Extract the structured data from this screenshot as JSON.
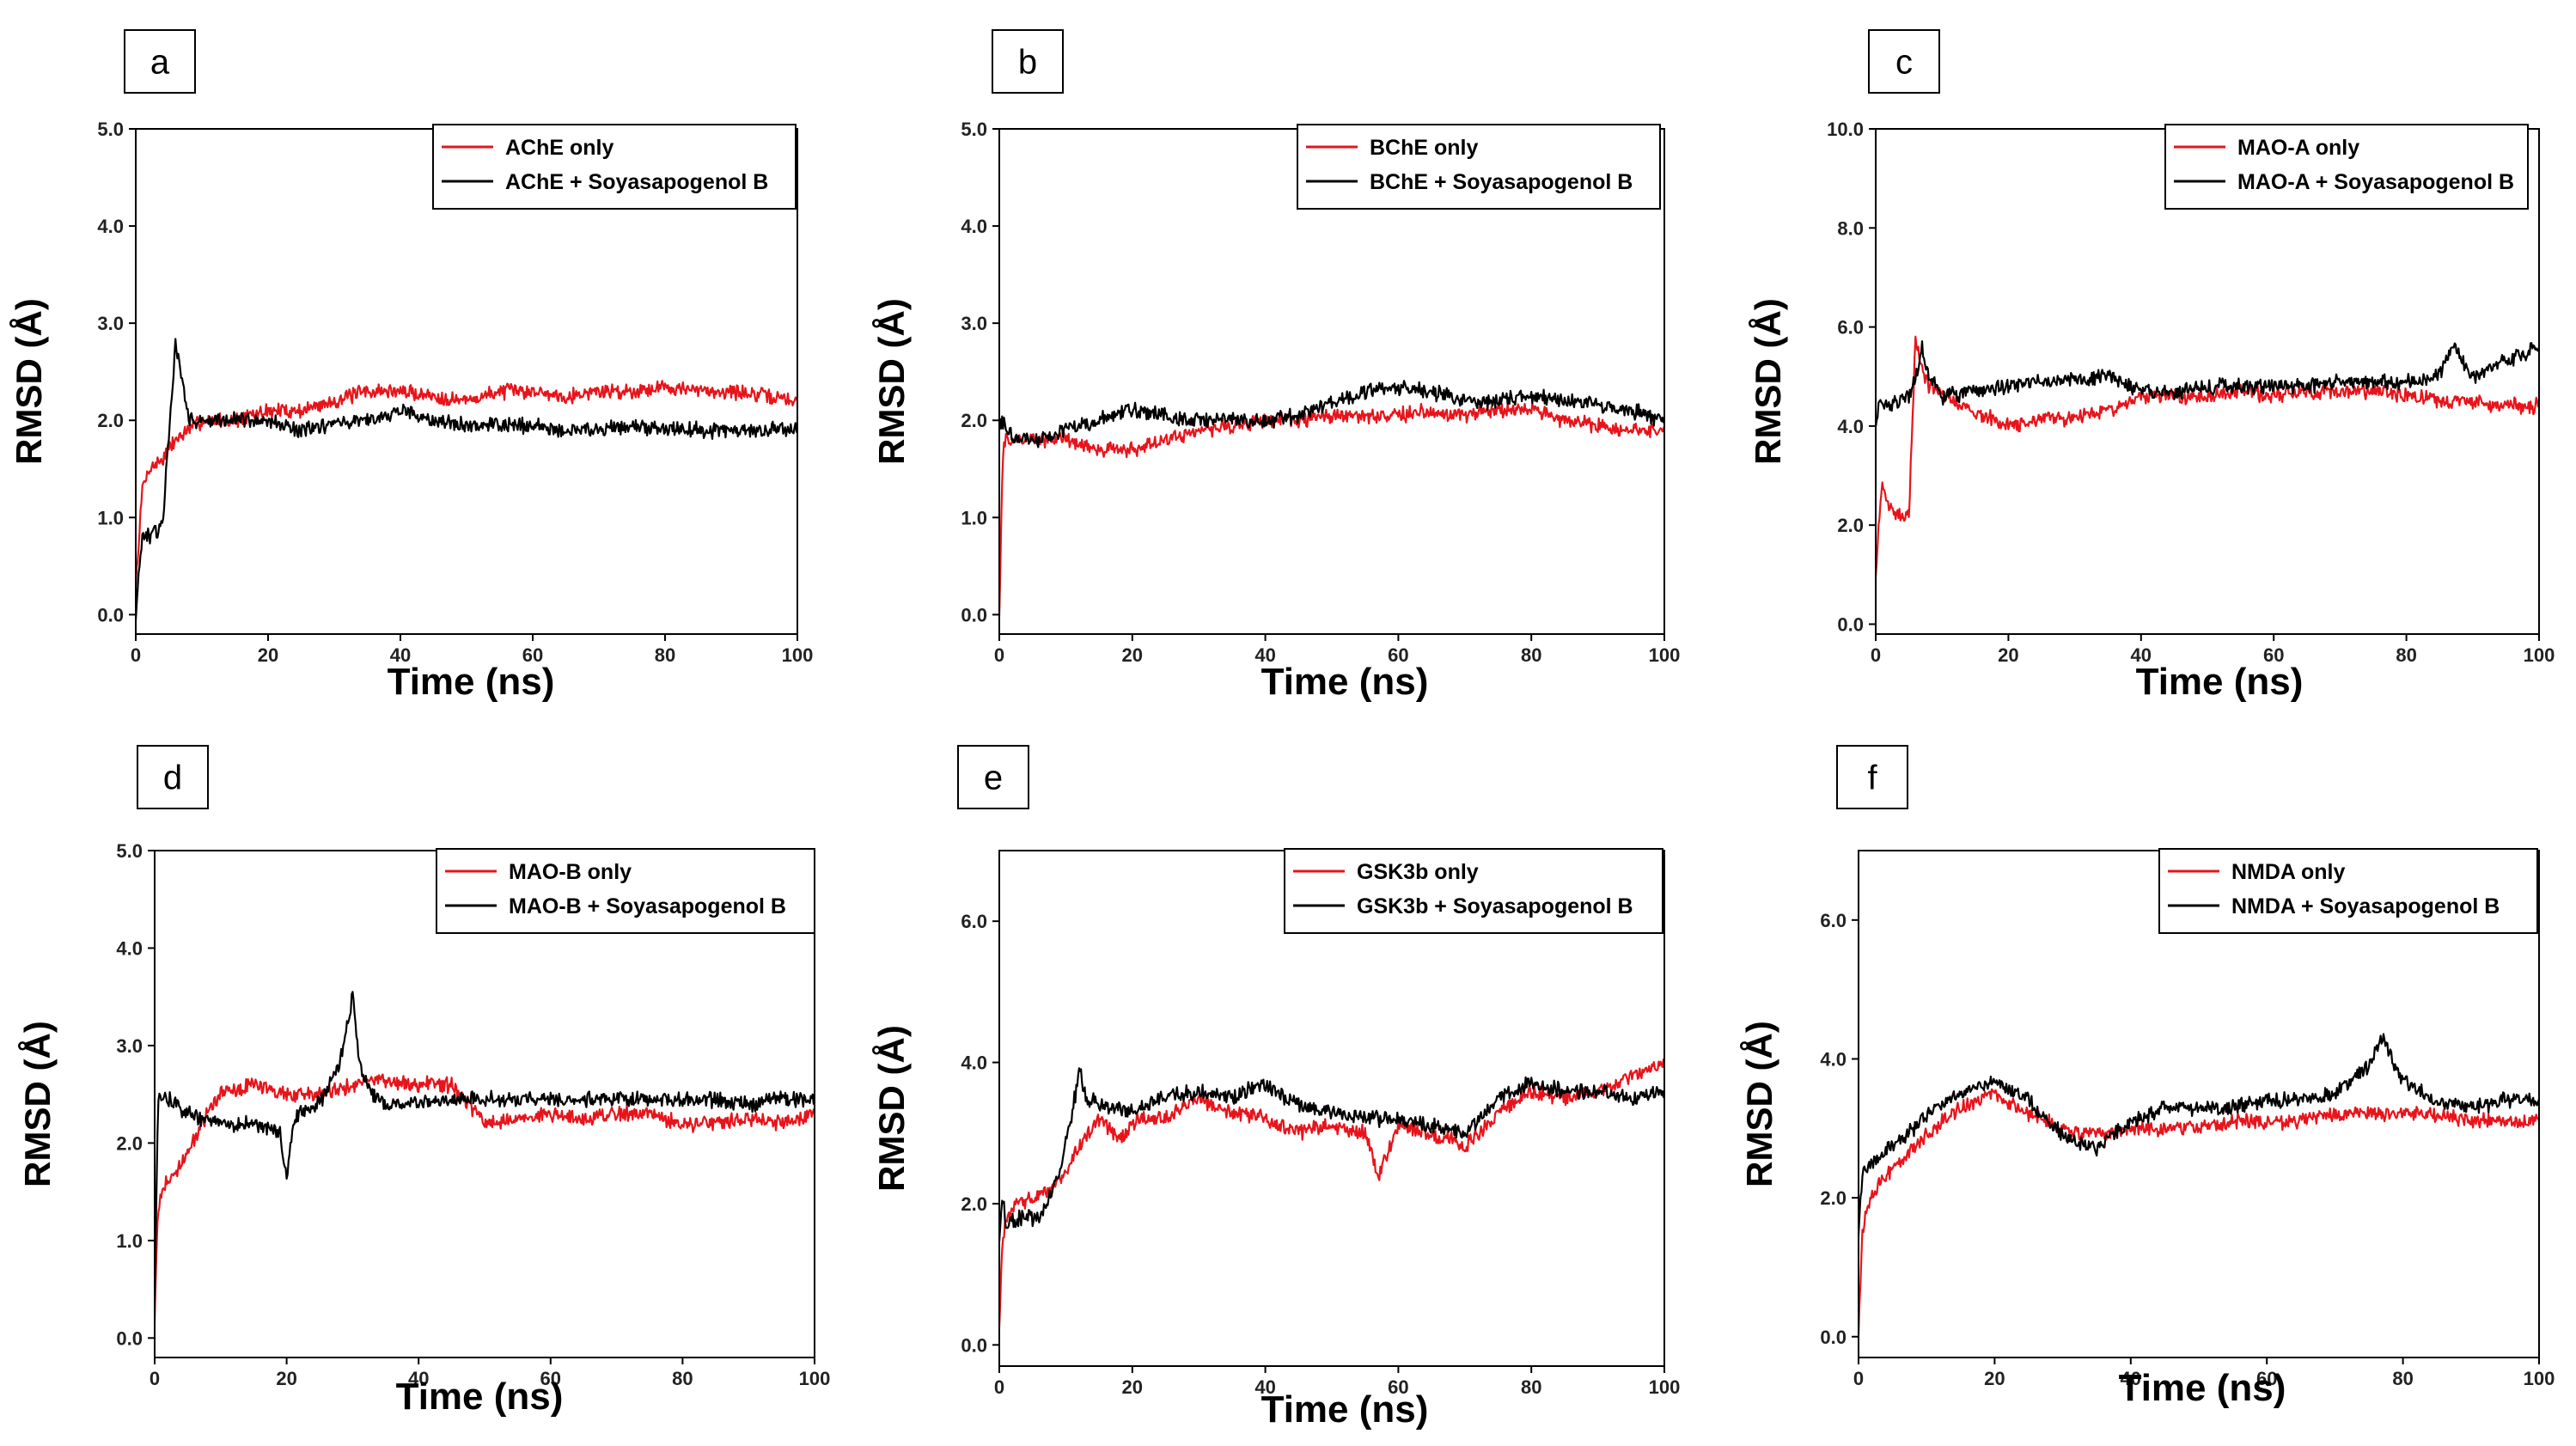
{
  "chart_data": [
    {
      "id": "a",
      "panel_label": "a",
      "type": "line",
      "xlabel": "Time (ns)",
      "ylabel": "RMSD (Å)",
      "xlim": [
        0,
        100
      ],
      "ylim": [
        -0.2,
        5.0
      ],
      "xticks": [
        "0",
        "20",
        "40",
        "60",
        "80",
        "100"
      ],
      "yticks": [
        "0.0",
        "1.0",
        "2.0",
        "3.0",
        "4.0",
        "5.0"
      ],
      "legend_position": "top-right",
      "series": [
        {
          "name": "AChE only",
          "color": "#e8141b",
          "x": [
            0,
            1,
            2,
            4,
            6,
            8,
            10,
            15,
            20,
            25,
            30,
            35,
            40,
            45,
            50,
            55,
            60,
            65,
            70,
            75,
            80,
            85,
            90,
            95,
            100
          ],
          "y": [
            0.3,
            1.3,
            1.5,
            1.6,
            1.8,
            1.9,
            2.0,
            2.0,
            2.1,
            2.1,
            2.2,
            2.3,
            2.3,
            2.25,
            2.2,
            2.3,
            2.3,
            2.25,
            2.3,
            2.3,
            2.35,
            2.3,
            2.3,
            2.25,
            2.2
          ]
        },
        {
          "name": "AChE + Soyasapogenol B",
          "color": "#000000",
          "x": [
            0,
            1,
            2,
            4,
            6,
            7,
            8,
            10,
            15,
            20,
            25,
            30,
            35,
            40,
            45,
            50,
            55,
            60,
            65,
            70,
            75,
            80,
            85,
            90,
            95,
            100
          ],
          "y": [
            0.0,
            0.8,
            0.8,
            0.9,
            2.8,
            2.4,
            2.0,
            2.0,
            2.0,
            2.0,
            1.9,
            1.95,
            2.0,
            2.1,
            2.0,
            1.95,
            1.95,
            1.95,
            1.9,
            1.9,
            1.95,
            1.9,
            1.9,
            1.9,
            1.9,
            1.9
          ]
        }
      ]
    },
    {
      "id": "b",
      "panel_label": "b",
      "type": "line",
      "xlabel": "Time (ns)",
      "ylabel": "RMSD (Å)",
      "xlim": [
        0,
        100
      ],
      "ylim": [
        -0.2,
        5.0
      ],
      "xticks": [
        "0",
        "20",
        "40",
        "60",
        "80",
        "100"
      ],
      "yticks": [
        "0.0",
        "1.0",
        "2.0",
        "3.0",
        "4.0",
        "5.0"
      ],
      "legend_position": "top-right",
      "series": [
        {
          "name": "BChE only",
          "color": "#e8141b",
          "x": [
            0,
            0.5,
            1,
            3,
            6,
            10,
            15,
            20,
            25,
            30,
            35,
            40,
            45,
            50,
            55,
            60,
            65,
            70,
            75,
            80,
            85,
            90,
            95,
            100
          ],
          "y": [
            0.0,
            1.6,
            1.8,
            1.8,
            1.8,
            1.8,
            1.7,
            1.7,
            1.8,
            1.9,
            1.95,
            2.0,
            2.0,
            2.05,
            2.05,
            2.05,
            2.1,
            2.05,
            2.1,
            2.1,
            2.0,
            1.95,
            1.9,
            1.9
          ]
        },
        {
          "name": "BChE + Soyasapogenol B",
          "color": "#000000",
          "x": [
            0,
            0.5,
            1,
            3,
            6,
            10,
            15,
            20,
            25,
            30,
            35,
            40,
            45,
            50,
            55,
            60,
            65,
            70,
            75,
            80,
            85,
            90,
            95,
            100
          ],
          "y": [
            1.9,
            2.0,
            1.9,
            1.8,
            1.8,
            1.9,
            2.0,
            2.1,
            2.05,
            2.0,
            2.0,
            2.0,
            2.05,
            2.2,
            2.3,
            2.35,
            2.3,
            2.2,
            2.2,
            2.25,
            2.2,
            2.15,
            2.1,
            2.0
          ]
        }
      ]
    },
    {
      "id": "c",
      "panel_label": "c",
      "type": "line",
      "xlabel": "Time (ns)",
      "ylabel": "RMSD (Å)",
      "xlim": [
        0,
        100
      ],
      "ylim": [
        -0.2,
        10.0
      ],
      "xticks": [
        "0",
        "20",
        "40",
        "60",
        "80",
        "100"
      ],
      "yticks": [
        "0.0",
        "2.0",
        "4.0",
        "6.0",
        "8.0",
        "10.0"
      ],
      "legend_position": "top-right",
      "series": [
        {
          "name": "MAO-A only",
          "color": "#e8141b",
          "x": [
            0,
            0.5,
            1,
            2,
            3,
            5,
            6,
            7,
            8,
            10,
            15,
            20,
            25,
            30,
            35,
            40,
            45,
            50,
            55,
            60,
            65,
            70,
            75,
            80,
            85,
            90,
            95,
            100
          ],
          "y": [
            1.0,
            2.0,
            2.8,
            2.4,
            2.2,
            2.2,
            5.8,
            5.2,
            4.8,
            4.6,
            4.3,
            4.0,
            4.1,
            4.2,
            4.3,
            4.6,
            4.6,
            4.6,
            4.7,
            4.6,
            4.7,
            4.7,
            4.7,
            4.6,
            4.5,
            4.5,
            4.4,
            4.4
          ]
        },
        {
          "name": "MAO-A + Soyasapogenol B",
          "color": "#000000",
          "x": [
            0,
            0.5,
            1,
            3,
            5,
            6,
            7,
            8,
            10,
            15,
            20,
            25,
            30,
            35,
            40,
            45,
            50,
            55,
            60,
            65,
            70,
            75,
            80,
            85,
            87,
            90,
            95,
            100
          ],
          "y": [
            4.0,
            4.5,
            4.4,
            4.5,
            4.6,
            5.0,
            5.6,
            5.0,
            4.6,
            4.7,
            4.8,
            4.9,
            4.9,
            5.0,
            4.7,
            4.7,
            4.8,
            4.8,
            4.8,
            4.8,
            4.9,
            4.9,
            4.9,
            5.0,
            5.6,
            5.0,
            5.3,
            5.6
          ]
        }
      ]
    },
    {
      "id": "d",
      "panel_label": "d",
      "type": "line",
      "xlabel": "Time (ns)",
      "ylabel": "RMSD (Å)",
      "xlim": [
        0,
        100
      ],
      "ylim": [
        -0.2,
        5.0
      ],
      "xticks": [
        "0",
        "20",
        "40",
        "60",
        "80",
        "100"
      ],
      "yticks": [
        "0.0",
        "1.0",
        "2.0",
        "3.0",
        "4.0",
        "5.0"
      ],
      "legend_position": "top-right",
      "series": [
        {
          "name": "MAO-B only",
          "color": "#e8141b",
          "x": [
            0,
            0.5,
            1,
            3,
            5,
            8,
            10,
            15,
            20,
            25,
            30,
            35,
            40,
            45,
            50,
            55,
            60,
            65,
            70,
            75,
            80,
            85,
            90,
            95,
            100
          ],
          "y": [
            0.2,
            1.3,
            1.5,
            1.7,
            1.9,
            2.3,
            2.5,
            2.6,
            2.5,
            2.5,
            2.6,
            2.65,
            2.6,
            2.6,
            2.2,
            2.25,
            2.3,
            2.25,
            2.3,
            2.3,
            2.2,
            2.2,
            2.25,
            2.2,
            2.3
          ]
        },
        {
          "name": "MAO-B + Soyasapogenol B",
          "color": "#000000",
          "x": [
            0,
            0.5,
            1,
            3,
            5,
            10,
            15,
            19,
            20,
            21,
            22,
            25,
            28,
            30,
            31,
            33,
            35,
            40,
            45,
            50,
            55,
            60,
            65,
            70,
            75,
            80,
            85,
            90,
            95,
            100
          ],
          "y": [
            0.4,
            2.4,
            2.5,
            2.4,
            2.3,
            2.2,
            2.2,
            2.1,
            1.6,
            2.2,
            2.3,
            2.4,
            2.8,
            3.5,
            2.8,
            2.5,
            2.4,
            2.4,
            2.45,
            2.45,
            2.45,
            2.45,
            2.45,
            2.45,
            2.45,
            2.45,
            2.45,
            2.4,
            2.45,
            2.45
          ]
        }
      ]
    },
    {
      "id": "e",
      "panel_label": "e",
      "type": "line",
      "xlabel": "Time (ns)",
      "ylabel": "RMSD (Å)",
      "xlim": [
        0,
        100
      ],
      "ylim": [
        -0.3,
        7.0
      ],
      "xticks": [
        "0",
        "20",
        "40",
        "60",
        "80",
        "100"
      ],
      "yticks": [
        "0.0",
        "2.0",
        "4.0",
        "6.0"
      ],
      "legend_position": "top-right",
      "series": [
        {
          "name": "GSK3b only",
          "color": "#e8141b",
          "x": [
            0,
            0.5,
            1,
            3,
            6,
            9,
            12,
            15,
            18,
            21,
            25,
            30,
            35,
            40,
            45,
            50,
            55,
            57,
            60,
            65,
            70,
            75,
            80,
            85,
            90,
            95,
            100
          ],
          "y": [
            0.3,
            1.5,
            1.8,
            2.0,
            2.1,
            2.3,
            2.8,
            3.2,
            2.9,
            3.2,
            3.2,
            3.5,
            3.3,
            3.2,
            3.0,
            3.1,
            3.0,
            2.4,
            3.1,
            3.0,
            2.8,
            3.3,
            3.6,
            3.5,
            3.6,
            3.8,
            4.0
          ]
        },
        {
          "name": "GSK3b + Soyasapogenol B",
          "color": "#000000",
          "x": [
            0,
            0.5,
            1,
            3,
            6,
            9,
            11,
            12,
            13,
            15,
            20,
            25,
            30,
            35,
            40,
            45,
            50,
            55,
            60,
            65,
            70,
            75,
            80,
            85,
            90,
            95,
            100
          ],
          "y": [
            1.5,
            2.2,
            1.7,
            1.8,
            1.8,
            2.4,
            3.3,
            3.9,
            3.5,
            3.4,
            3.3,
            3.5,
            3.6,
            3.5,
            3.7,
            3.4,
            3.3,
            3.2,
            3.2,
            3.1,
            3.0,
            3.5,
            3.7,
            3.6,
            3.6,
            3.5,
            3.6
          ]
        }
      ]
    },
    {
      "id": "f",
      "panel_label": "f",
      "type": "line",
      "xlabel": "Time (ns)",
      "ylabel": "RMSD (Å)",
      "xlim": [
        0,
        100
      ],
      "ylim": [
        -0.3,
        7.0
      ],
      "xticks": [
        "0",
        "20",
        "40",
        "60",
        "80",
        "100"
      ],
      "yticks": [
        "0.0",
        "2.0",
        "4.0",
        "6.0"
      ],
      "legend_position": "top-right",
      "series": [
        {
          "name": "NMDA only",
          "color": "#e8141b",
          "x": [
            0,
            0.5,
            1,
            3,
            6,
            10,
            15,
            20,
            25,
            30,
            35,
            40,
            45,
            50,
            55,
            60,
            65,
            70,
            75,
            80,
            85,
            90,
            95,
            100
          ],
          "y": [
            0.0,
            1.4,
            1.8,
            2.2,
            2.5,
            2.9,
            3.3,
            3.5,
            3.2,
            3.0,
            2.9,
            3.0,
            3.0,
            3.0,
            3.1,
            3.1,
            3.1,
            3.2,
            3.2,
            3.2,
            3.2,
            3.1,
            3.1,
            3.1
          ]
        },
        {
          "name": "NMDA + Soyasapogenol B",
          "color": "#000000",
          "x": [
            0,
            0.5,
            1,
            3,
            6,
            10,
            15,
            20,
            25,
            30,
            35,
            40,
            45,
            50,
            55,
            60,
            65,
            70,
            75,
            77,
            80,
            85,
            90,
            95,
            100
          ],
          "y": [
            1.5,
            2.3,
            2.4,
            2.6,
            2.8,
            3.2,
            3.5,
            3.7,
            3.4,
            2.9,
            2.7,
            3.1,
            3.3,
            3.3,
            3.3,
            3.4,
            3.4,
            3.5,
            3.9,
            4.3,
            3.7,
            3.4,
            3.3,
            3.4,
            3.4
          ]
        }
      ]
    }
  ]
}
